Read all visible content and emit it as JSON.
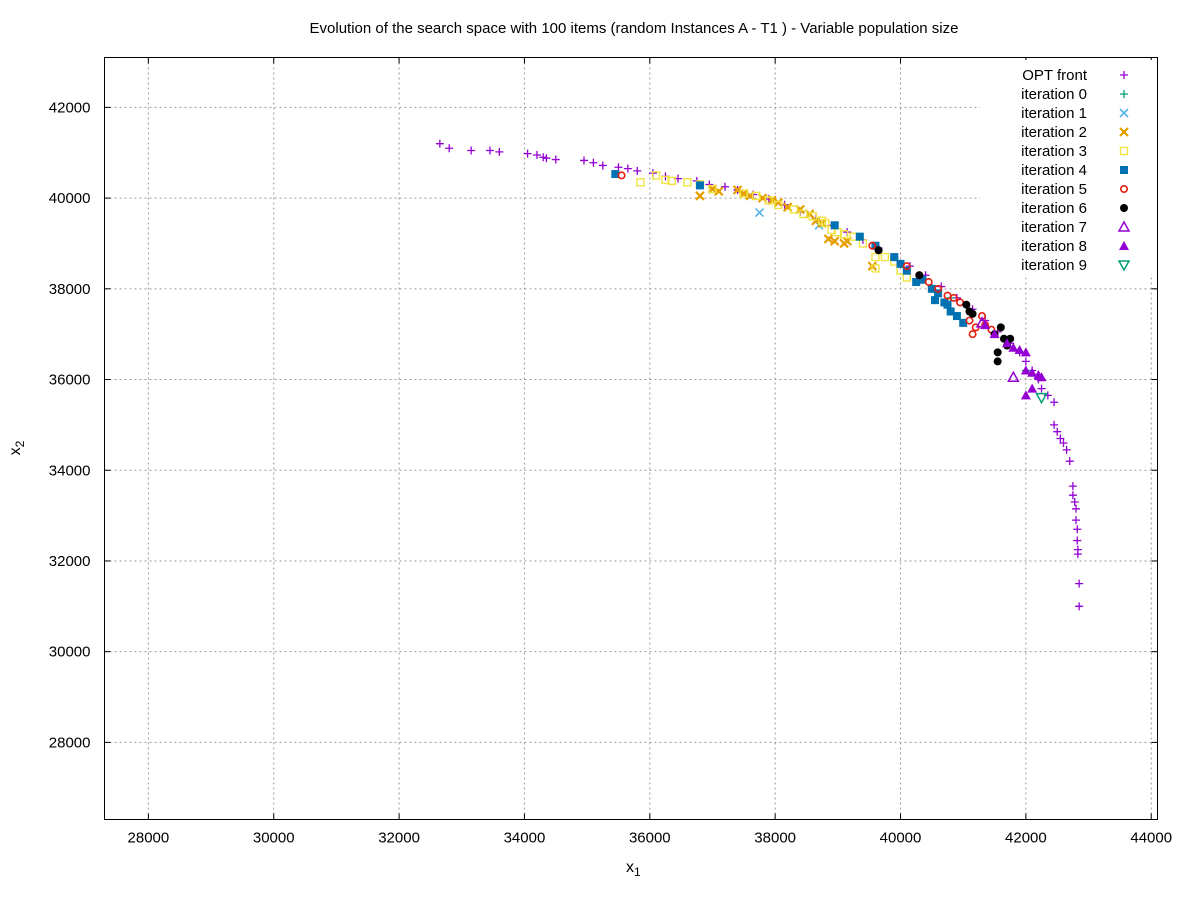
{
  "chart_data": {
    "type": "scatter",
    "title": "Evolution of the search space with 100 items (random Instances A - T1 ) - Variable population size",
    "xlabel": "x",
    "xlabel_sub": "1",
    "ylabel": "x",
    "ylabel_sub": "2",
    "xlim": [
      27300,
      44100
    ],
    "ylim": [
      26300,
      43100
    ],
    "xticks": [
      28000,
      30000,
      32000,
      34000,
      36000,
      38000,
      40000,
      42000,
      44000
    ],
    "yticks": [
      28000,
      30000,
      32000,
      34000,
      36000,
      38000,
      40000,
      42000
    ],
    "grid": true,
    "legend_position": "top-right",
    "series": [
      {
        "name": "OPT front",
        "color": "#9400d3",
        "marker": "plus",
        "points": [
          [
            32650,
            41200
          ],
          [
            32800,
            41100
          ],
          [
            33150,
            41050
          ],
          [
            33450,
            41050
          ],
          [
            33600,
            41020
          ],
          [
            34050,
            40980
          ],
          [
            34200,
            40950
          ],
          [
            34300,
            40900
          ],
          [
            34350,
            40880
          ],
          [
            34500,
            40850
          ],
          [
            34950,
            40830
          ],
          [
            35100,
            40780
          ],
          [
            35250,
            40720
          ],
          [
            35500,
            40680
          ],
          [
            35650,
            40650
          ],
          [
            35800,
            40600
          ],
          [
            36050,
            40550
          ],
          [
            36250,
            40480
          ],
          [
            36450,
            40430
          ],
          [
            36750,
            40380
          ],
          [
            36950,
            40300
          ],
          [
            37200,
            40250
          ],
          [
            37400,
            40180
          ],
          [
            37650,
            40080
          ],
          [
            37900,
            39980
          ],
          [
            38150,
            39850
          ],
          [
            38400,
            39700
          ],
          [
            38650,
            39550
          ],
          [
            38900,
            39400
          ],
          [
            39150,
            39250
          ],
          [
            39400,
            39080
          ],
          [
            39650,
            38900
          ],
          [
            39900,
            38700
          ],
          [
            40150,
            38500
          ],
          [
            40400,
            38300
          ],
          [
            40650,
            38050
          ],
          [
            40900,
            37800
          ],
          [
            41150,
            37550
          ],
          [
            41350,
            37300
          ],
          [
            41550,
            37050
          ],
          [
            41750,
            36800
          ],
          [
            41900,
            36600
          ],
          [
            42000,
            36400
          ],
          [
            42100,
            36200
          ],
          [
            42200,
            36000
          ],
          [
            42250,
            35800
          ],
          [
            42350,
            35650
          ],
          [
            42450,
            35500
          ],
          [
            42450,
            35000
          ],
          [
            42500,
            34850
          ],
          [
            42550,
            34700
          ],
          [
            42600,
            34600
          ],
          [
            42650,
            34450
          ],
          [
            42700,
            34200
          ],
          [
            42750,
            33650
          ],
          [
            42750,
            33450
          ],
          [
            42780,
            33300
          ],
          [
            42800,
            33150
          ],
          [
            42800,
            32900
          ],
          [
            42820,
            32700
          ],
          [
            42820,
            32450
          ],
          [
            42830,
            32250
          ],
          [
            42830,
            32150
          ],
          [
            42850,
            31500
          ],
          [
            42850,
            31000
          ]
        ]
      },
      {
        "name": "iteration 0",
        "color": "#009e73",
        "marker": "plus",
        "points": [
          [
            40500,
            38050
          ],
          [
            40800,
            37800
          ],
          [
            42000,
            36200
          ]
        ]
      },
      {
        "name": "iteration 1",
        "color": "#56b4e9",
        "marker": "x",
        "points": [
          [
            37750,
            39680
          ],
          [
            38700,
            39400
          ]
        ]
      },
      {
        "name": "iteration 2",
        "color": "#e69f00",
        "marker": "starbox",
        "points": [
          [
            36800,
            40050
          ],
          [
            37000,
            40200
          ],
          [
            37100,
            40150
          ],
          [
            37400,
            40180
          ],
          [
            37500,
            40100
          ],
          [
            37600,
            40050
          ],
          [
            37800,
            40000
          ],
          [
            37950,
            39950
          ],
          [
            38050,
            39900
          ],
          [
            38200,
            39800
          ],
          [
            38400,
            39750
          ],
          [
            38550,
            39650
          ],
          [
            38650,
            39500
          ],
          [
            38750,
            39450
          ],
          [
            38850,
            39100
          ],
          [
            38950,
            39050
          ],
          [
            39100,
            39000
          ],
          [
            39150,
            39050
          ],
          [
            39550,
            38500
          ]
        ]
      },
      {
        "name": "iteration 3",
        "color": "#f0e442",
        "marker": "openbox",
        "points": [
          [
            35850,
            40350
          ],
          [
            36100,
            40500
          ],
          [
            36250,
            40400
          ],
          [
            36350,
            40380
          ],
          [
            36600,
            40350
          ],
          [
            36800,
            40300
          ],
          [
            37000,
            40200
          ],
          [
            37500,
            40100
          ],
          [
            37700,
            40050
          ],
          [
            37900,
            39950
          ],
          [
            38050,
            39850
          ],
          [
            38300,
            39750
          ],
          [
            38450,
            39650
          ],
          [
            38600,
            39600
          ],
          [
            38750,
            39500
          ],
          [
            38800,
            39450
          ],
          [
            38900,
            39300
          ],
          [
            39000,
            39250
          ],
          [
            39100,
            39200
          ],
          [
            39250,
            39150
          ],
          [
            39400,
            39000
          ],
          [
            39600,
            38700
          ],
          [
            39600,
            38450
          ],
          [
            39750,
            38700
          ],
          [
            39900,
            38600
          ],
          [
            40000,
            38400
          ],
          [
            40100,
            38250
          ]
        ]
      },
      {
        "name": "iteration 4",
        "color": "#0072b2",
        "marker": "filledbox",
        "points": [
          [
            35450,
            40530
          ],
          [
            36800,
            40280
          ],
          [
            38950,
            39400
          ],
          [
            39350,
            39150
          ],
          [
            39600,
            38950
          ],
          [
            39900,
            38700
          ],
          [
            40000,
            38550
          ],
          [
            40100,
            38400
          ],
          [
            40250,
            38150
          ],
          [
            40350,
            38200
          ],
          [
            40500,
            38000
          ],
          [
            40600,
            37900
          ],
          [
            40700,
            37700
          ],
          [
            40800,
            37500
          ],
          [
            40900,
            37400
          ],
          [
            41000,
            37250
          ],
          [
            40550,
            37750
          ],
          [
            40750,
            37650
          ]
        ]
      },
      {
        "name": "iteration 5",
        "color": "#e51e10",
        "marker": "opencircle",
        "points": [
          [
            35550,
            40500
          ],
          [
            39550,
            38950
          ],
          [
            40100,
            38500
          ],
          [
            40300,
            38300
          ],
          [
            40450,
            38150
          ],
          [
            40600,
            38000
          ],
          [
            40750,
            37850
          ],
          [
            40850,
            37800
          ],
          [
            40950,
            37700
          ],
          [
            41100,
            37300
          ],
          [
            41200,
            37150
          ],
          [
            41150,
            37000
          ],
          [
            41300,
            37400
          ],
          [
            41350,
            37200
          ],
          [
            41450,
            37100
          ]
        ]
      },
      {
        "name": "iteration 6",
        "color": "#000000",
        "marker": "filledcircle",
        "points": [
          [
            39650,
            38850
          ],
          [
            40300,
            38300
          ],
          [
            41050,
            37650
          ],
          [
            41100,
            37500
          ],
          [
            41150,
            37450
          ],
          [
            41500,
            37000
          ],
          [
            41600,
            37150
          ],
          [
            41650,
            36900
          ],
          [
            41700,
            36750
          ],
          [
            41750,
            36900
          ],
          [
            41550,
            36600
          ],
          [
            41550,
            36400
          ]
        ]
      },
      {
        "name": "iteration 7",
        "color": "#9400d3",
        "marker": "opentriangle",
        "points": [
          [
            41800,
            36050
          ],
          [
            41300,
            37250
          ]
        ]
      },
      {
        "name": "iteration 8",
        "color": "#9400d3",
        "marker": "filledtriangle",
        "points": [
          [
            41350,
            37200
          ],
          [
            41500,
            37000
          ],
          [
            41700,
            36800
          ],
          [
            41800,
            36700
          ],
          [
            41900,
            36650
          ],
          [
            42000,
            36600
          ],
          [
            42000,
            36200
          ],
          [
            42100,
            36150
          ],
          [
            42200,
            36100
          ],
          [
            42250,
            36050
          ],
          [
            42000,
            35650
          ],
          [
            42100,
            35800
          ]
        ]
      },
      {
        "name": "iteration 9",
        "color": "#009e73",
        "marker": "opendowntriangle",
        "points": [
          [
            42250,
            35600
          ]
        ]
      }
    ]
  }
}
